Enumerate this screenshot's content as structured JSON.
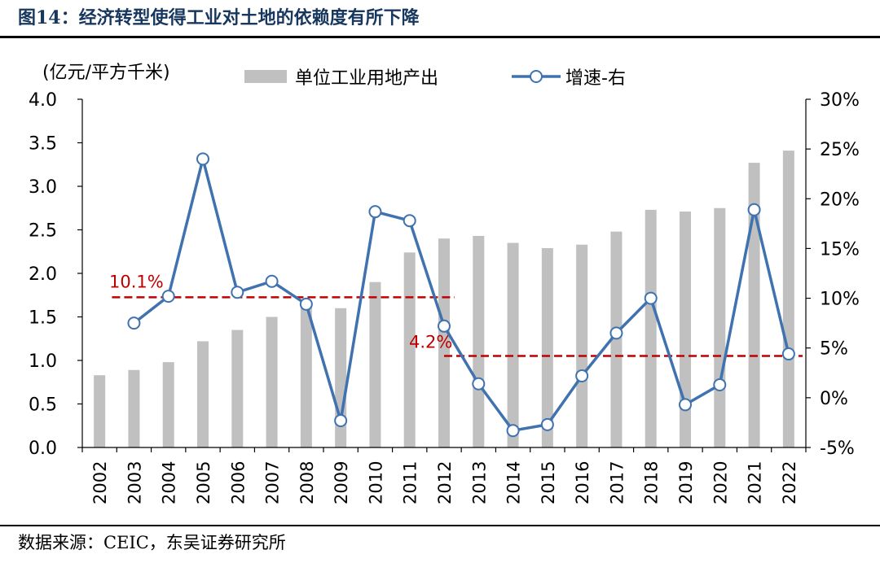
{
  "figure": {
    "title": "图14：经济转型使得工业对土地的依赖度有所下降",
    "source": "数据来源：CEIC，东吴证券研究所"
  },
  "chart_data": {
    "type": "bar",
    "title": "",
    "categories": [
      "2002",
      "2003",
      "2004",
      "2005",
      "2006",
      "2007",
      "2008",
      "2009",
      "2010",
      "2011",
      "2012",
      "2013",
      "2014",
      "2015",
      "2016",
      "2017",
      "2018",
      "2019",
      "2020",
      "2021",
      "2022"
    ],
    "left_axis": {
      "label": "(亿元/平方千米)",
      "range": [
        0,
        4.0
      ],
      "ticks": [
        "0.0",
        "0.5",
        "1.0",
        "1.5",
        "2.0",
        "2.5",
        "3.0",
        "3.5",
        "4.0"
      ]
    },
    "right_axis": {
      "label": "",
      "range": [
        -5,
        30
      ],
      "ticks": [
        "-5%",
        "0%",
        "5%",
        "10%",
        "15%",
        "20%",
        "25%",
        "30%"
      ]
    },
    "series": [
      {
        "name": "单位工业用地产出",
        "type": "bar",
        "axis": "left",
        "color": "#c0c0c0",
        "values": [
          0.83,
          0.89,
          0.98,
          1.22,
          1.35,
          1.5,
          1.64,
          1.6,
          1.9,
          2.24,
          2.4,
          2.43,
          2.35,
          2.29,
          2.33,
          2.48,
          2.73,
          2.71,
          2.75,
          3.27,
          3.41
        ]
      },
      {
        "name": "增速-右",
        "type": "line",
        "axis": "right",
        "color": "#3f72af",
        "values": [
          null,
          7.5,
          10.2,
          24.0,
          10.6,
          11.7,
          9.4,
          -2.3,
          18.7,
          17.8,
          7.2,
          1.4,
          -3.3,
          -2.7,
          2.2,
          6.5,
          10.0,
          -0.7,
          1.3,
          18.9,
          4.4
        ]
      }
    ],
    "annotations": [
      {
        "text": "10.1%",
        "value": 10.1,
        "from": "2003",
        "to": "2012",
        "color": "#c00000"
      },
      {
        "text": "4.2%",
        "value": 4.2,
        "from": "2012",
        "to": "2022",
        "color": "#c00000"
      }
    ],
    "legend_position": "top"
  }
}
